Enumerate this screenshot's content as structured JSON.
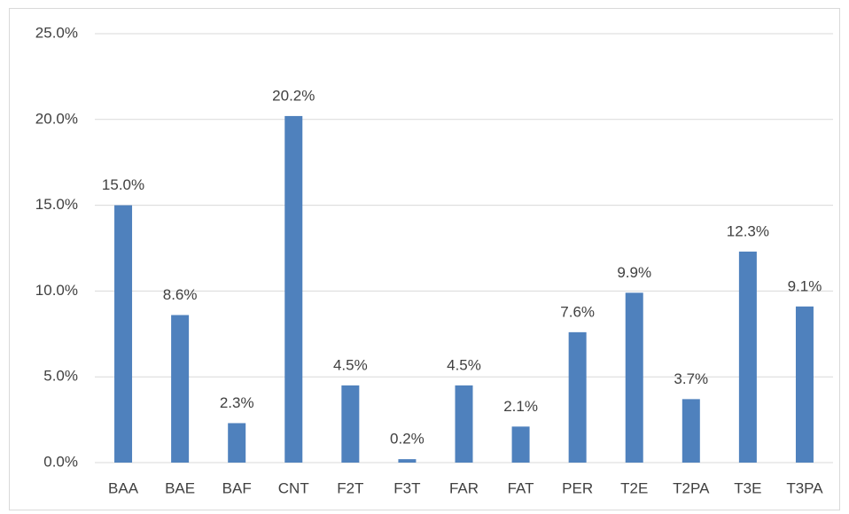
{
  "chart_data": {
    "type": "bar",
    "categories": [
      "BAA",
      "BAE",
      "BAF",
      "CNT",
      "F2T",
      "F3T",
      "FAR",
      "FAT",
      "PER",
      "T2E",
      "T2PA",
      "T3E",
      "T3PA"
    ],
    "values": [
      15.0,
      8.6,
      2.3,
      20.2,
      4.5,
      0.2,
      4.5,
      2.1,
      7.6,
      9.9,
      3.7,
      12.3,
      9.1
    ],
    "value_labels": [
      "15.0%",
      "8.6%",
      "2.3%",
      "20.2%",
      "4.5%",
      "0.2%",
      "4.5%",
      "2.1%",
      "7.6%",
      "9.9%",
      "3.7%",
      "12.3%",
      "9.1%"
    ],
    "color": "#4f81bd",
    "ylim": [
      0,
      25
    ],
    "yticks": [
      {
        "value": 0,
        "label": "0.0%"
      },
      {
        "value": 5,
        "label": "5.0%"
      },
      {
        "value": 10,
        "label": "10.0%"
      },
      {
        "value": 15,
        "label": "15.0%"
      },
      {
        "value": 20,
        "label": "20.0%"
      },
      {
        "value": 25,
        "label": "25.0%"
      }
    ],
    "grid": true
  }
}
